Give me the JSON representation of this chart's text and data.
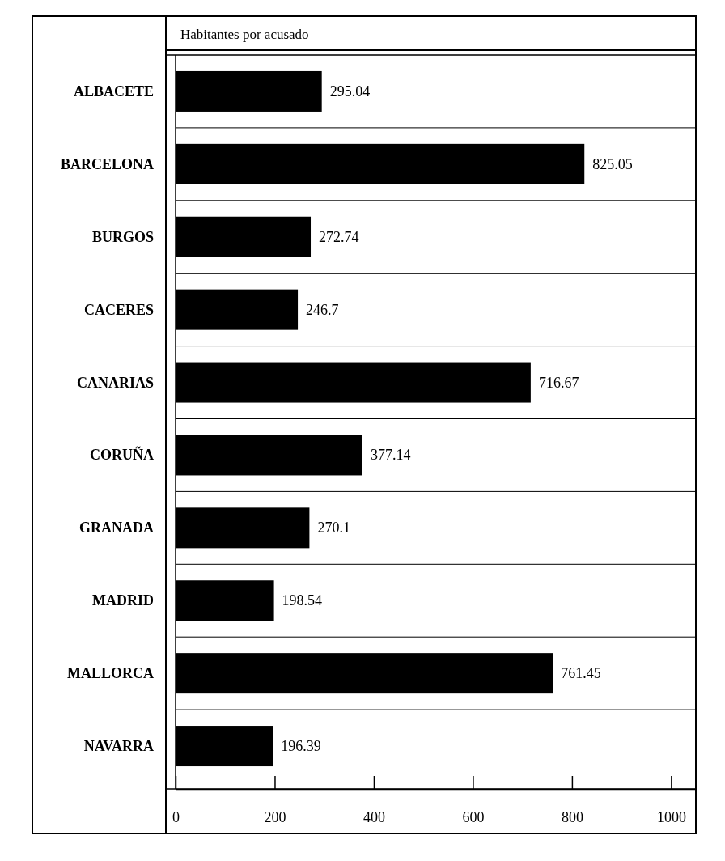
{
  "chart_data": {
    "type": "bar",
    "orientation": "horizontal",
    "title": "Habitantes por acusado",
    "categories": [
      "ALBACETE",
      "BARCELONA",
      "BURGOS",
      "CACERES",
      "CANARIAS",
      "CORUÑA",
      "GRANADA",
      "MADRID",
      "MALLORCA",
      "NAVARRA"
    ],
    "values": [
      295.04,
      825.05,
      272.74,
      246.7,
      716.67,
      377.14,
      270.1,
      198.54,
      761.45,
      196.39
    ],
    "color": "#000000",
    "xlim": [
      0,
      1050
    ],
    "xticks": [
      0,
      200,
      400,
      600,
      800,
      1000
    ],
    "data_labels": true,
    "grid": false
  }
}
